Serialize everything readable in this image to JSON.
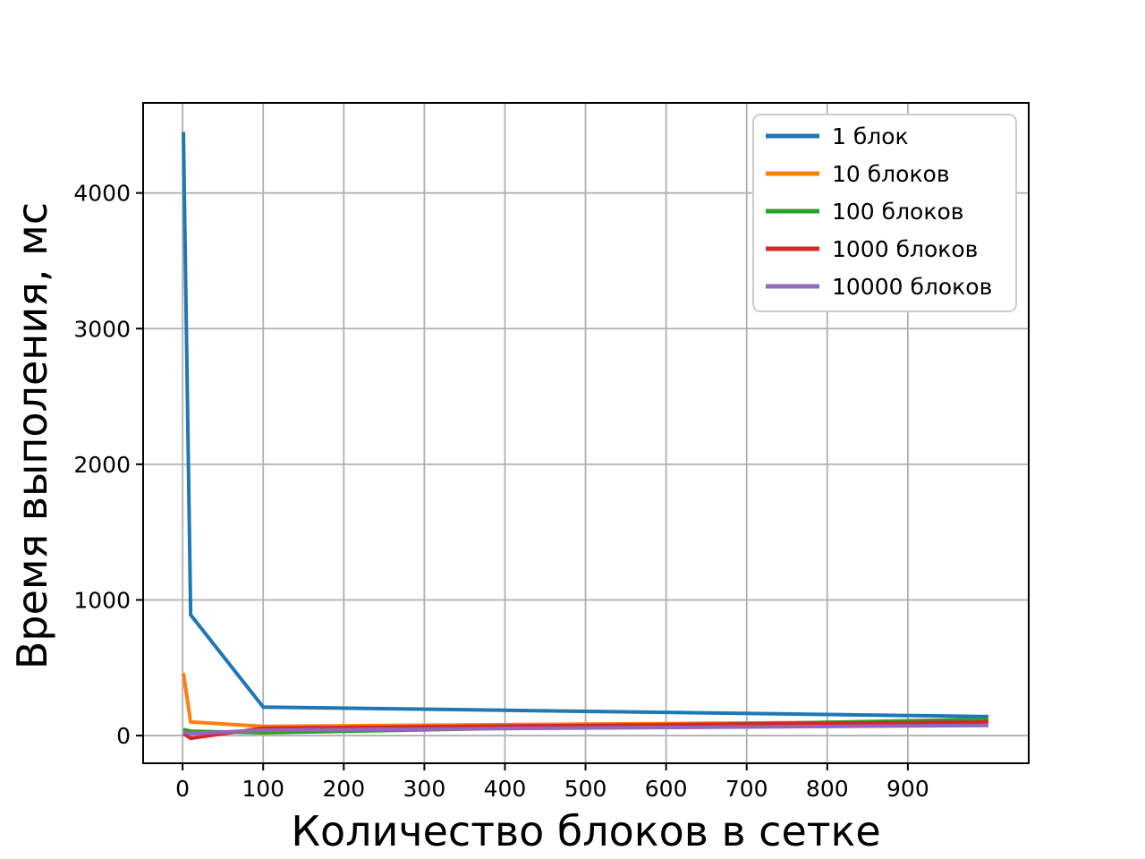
{
  "chart_data": {
    "type": "line",
    "title": "",
    "xlabel": "Количество блоков в сетке",
    "ylabel": "Время выполения, мс",
    "x": [
      1,
      10,
      100,
      1000
    ],
    "series": [
      {
        "name": "1 блок",
        "color": "#1f77b4",
        "values": [
          4450,
          890,
          210,
          140
        ]
      },
      {
        "name": "10 блоков",
        "color": "#ff7f0e",
        "values": [
          460,
          100,
          68,
          105
        ]
      },
      {
        "name": "100 блоков",
        "color": "#2ca02c",
        "values": [
          45,
          33,
          20,
          120
        ]
      },
      {
        "name": "1000 блоков",
        "color": "#d62728",
        "values": [
          15,
          -20,
          55,
          100
        ]
      },
      {
        "name": "10000 блоков",
        "color": "#9467bd",
        "values": [
          25,
          15,
          40,
          75
        ]
      }
    ],
    "xticks": [
      0,
      100,
      200,
      300,
      400,
      500,
      600,
      700,
      800,
      900
    ],
    "yticks": [
      0,
      1000,
      2000,
      3000,
      4000
    ],
    "xlim": [
      -49,
      1050
    ],
    "ylim": [
      -204,
      4664
    ],
    "grid": true,
    "legend_position": "upper right",
    "colors": {
      "grid": "#b0b0b0",
      "spine": "#000000",
      "legend_border": "#cccccc",
      "legend_background": "#ffffff",
      "background": "#ffffff"
    }
  }
}
